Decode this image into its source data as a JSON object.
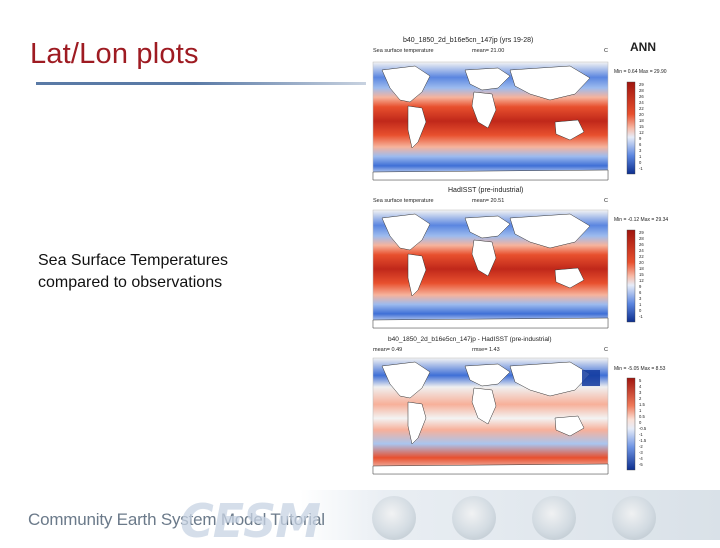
{
  "slide": {
    "title": "Lat/Lon plots",
    "body_lines": "Sea Surface Temperatures\ncompared to observations"
  },
  "figure": {
    "season_label": "ANN",
    "panels": [
      {
        "title": "b40_1850_2d_b16e5cn_147jp (yrs 19-28)",
        "left_label": "Sea surface temperature",
        "mean_label": "mean=  21.00",
        "right_letter": "C",
        "minmax": "Min =  0.64  Max =  29.90",
        "colorbar_labels": [
          "29",
          "28",
          "26",
          "24",
          "22",
          "20",
          "18",
          "15",
          "12",
          "9",
          "6",
          "3",
          "1",
          "0",
          "-1"
        ]
      },
      {
        "title": "HadISST (pre-industrial)",
        "left_label": "Sea surface temperature",
        "mean_label": "mean=  20.51",
        "right_letter": "C",
        "minmax": "Min =  -0.12  Max =  29.34",
        "colorbar_labels": [
          "29",
          "28",
          "26",
          "24",
          "22",
          "20",
          "18",
          "15",
          "12",
          "9",
          "6",
          "3",
          "1",
          "0",
          "-1"
        ]
      },
      {
        "title": "b40_1850_2d_b16e5cn_147jp - HadISST (pre-industrial)",
        "left_label": "mean=  0.49",
        "mean_label": "rmse=  1.43",
        "right_letter": "C",
        "minmax": "Min =  -5.05  Max =  8.53",
        "colorbar_labels": [
          "5",
          "4",
          "3",
          "2",
          "1.5",
          "1",
          "0.5",
          "0",
          "-0.5",
          "-1",
          "-1.5",
          "-2",
          "-3",
          "-4",
          "-5"
        ]
      }
    ],
    "colors": {
      "warm_dark": "#c0281a",
      "warm": "#e8502e",
      "warm_light": "#f7a38a",
      "neutral": "#f3f3f3",
      "cool_light": "#a9c5ef",
      "cool": "#3f6fd6",
      "cool_dark": "#123a9e"
    }
  },
  "footer": {
    "text": "Community Earth System Model Tutorial",
    "logo": "CESM"
  }
}
